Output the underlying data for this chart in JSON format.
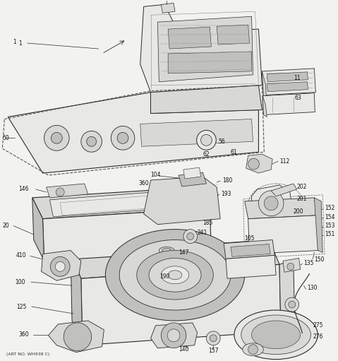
{
  "background_color": "#f2f2ee",
  "line_color": "#2a2a2a",
  "light_fill": "#e8e8e4",
  "medium_fill": "#d8d8d4",
  "dark_fill": "#c0c0bc",
  "footer_text": "(ART NO. WH938 C)",
  "figsize": [
    4.79,
    5.11
  ],
  "dpi": 100
}
